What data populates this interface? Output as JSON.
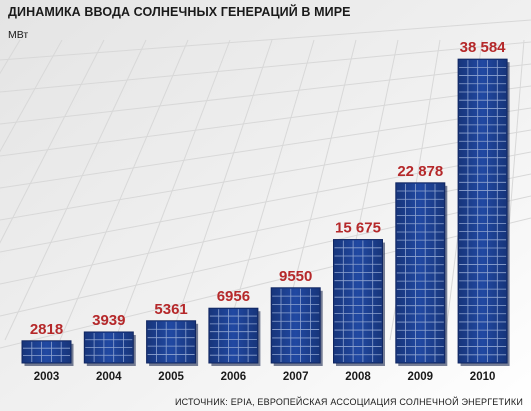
{
  "header": {
    "title": "ДИНАМИКА ВВОДА СОЛНЕЧНЫХ ГЕНЕРАЦИЙ В МИРЕ",
    "unit": "МВт"
  },
  "footer": {
    "source": "ИСТОЧНИК: EPIA, ЕВРОПЕЙСКАЯ АССОЦИАЦИЯ СОЛНЕЧНОЙ ЭНЕРГЕТИКИ"
  },
  "colors": {
    "panel": "#1d3f8f",
    "panel_grid": "#8fa4d0",
    "panel_shadow": "#0b1a44",
    "value_label": "#b5282a",
    "axis_text": "#1a1a1a",
    "background_cells": "#d8d8d8"
  },
  "chart_data": {
    "type": "bar",
    "categories": [
      "2003",
      "2004",
      "2005",
      "2006",
      "2007",
      "2008",
      "2009",
      "2010"
    ],
    "values": [
      2818,
      3939,
      5361,
      6956,
      9550,
      15675,
      22878,
      38584
    ],
    "value_labels": [
      "2818",
      "3939",
      "5361",
      "6956",
      "9550",
      "15 675",
      "22 878",
      "38 584"
    ],
    "title": "ДИНАМИКА ВВОДА СОЛНЕЧНЫХ ГЕНЕРАЦИЙ В МИРЕ",
    "ylabel": "МВт",
    "xlabel": "",
    "ylim": [
      0,
      40000
    ],
    "grid": false,
    "legend": "none"
  }
}
